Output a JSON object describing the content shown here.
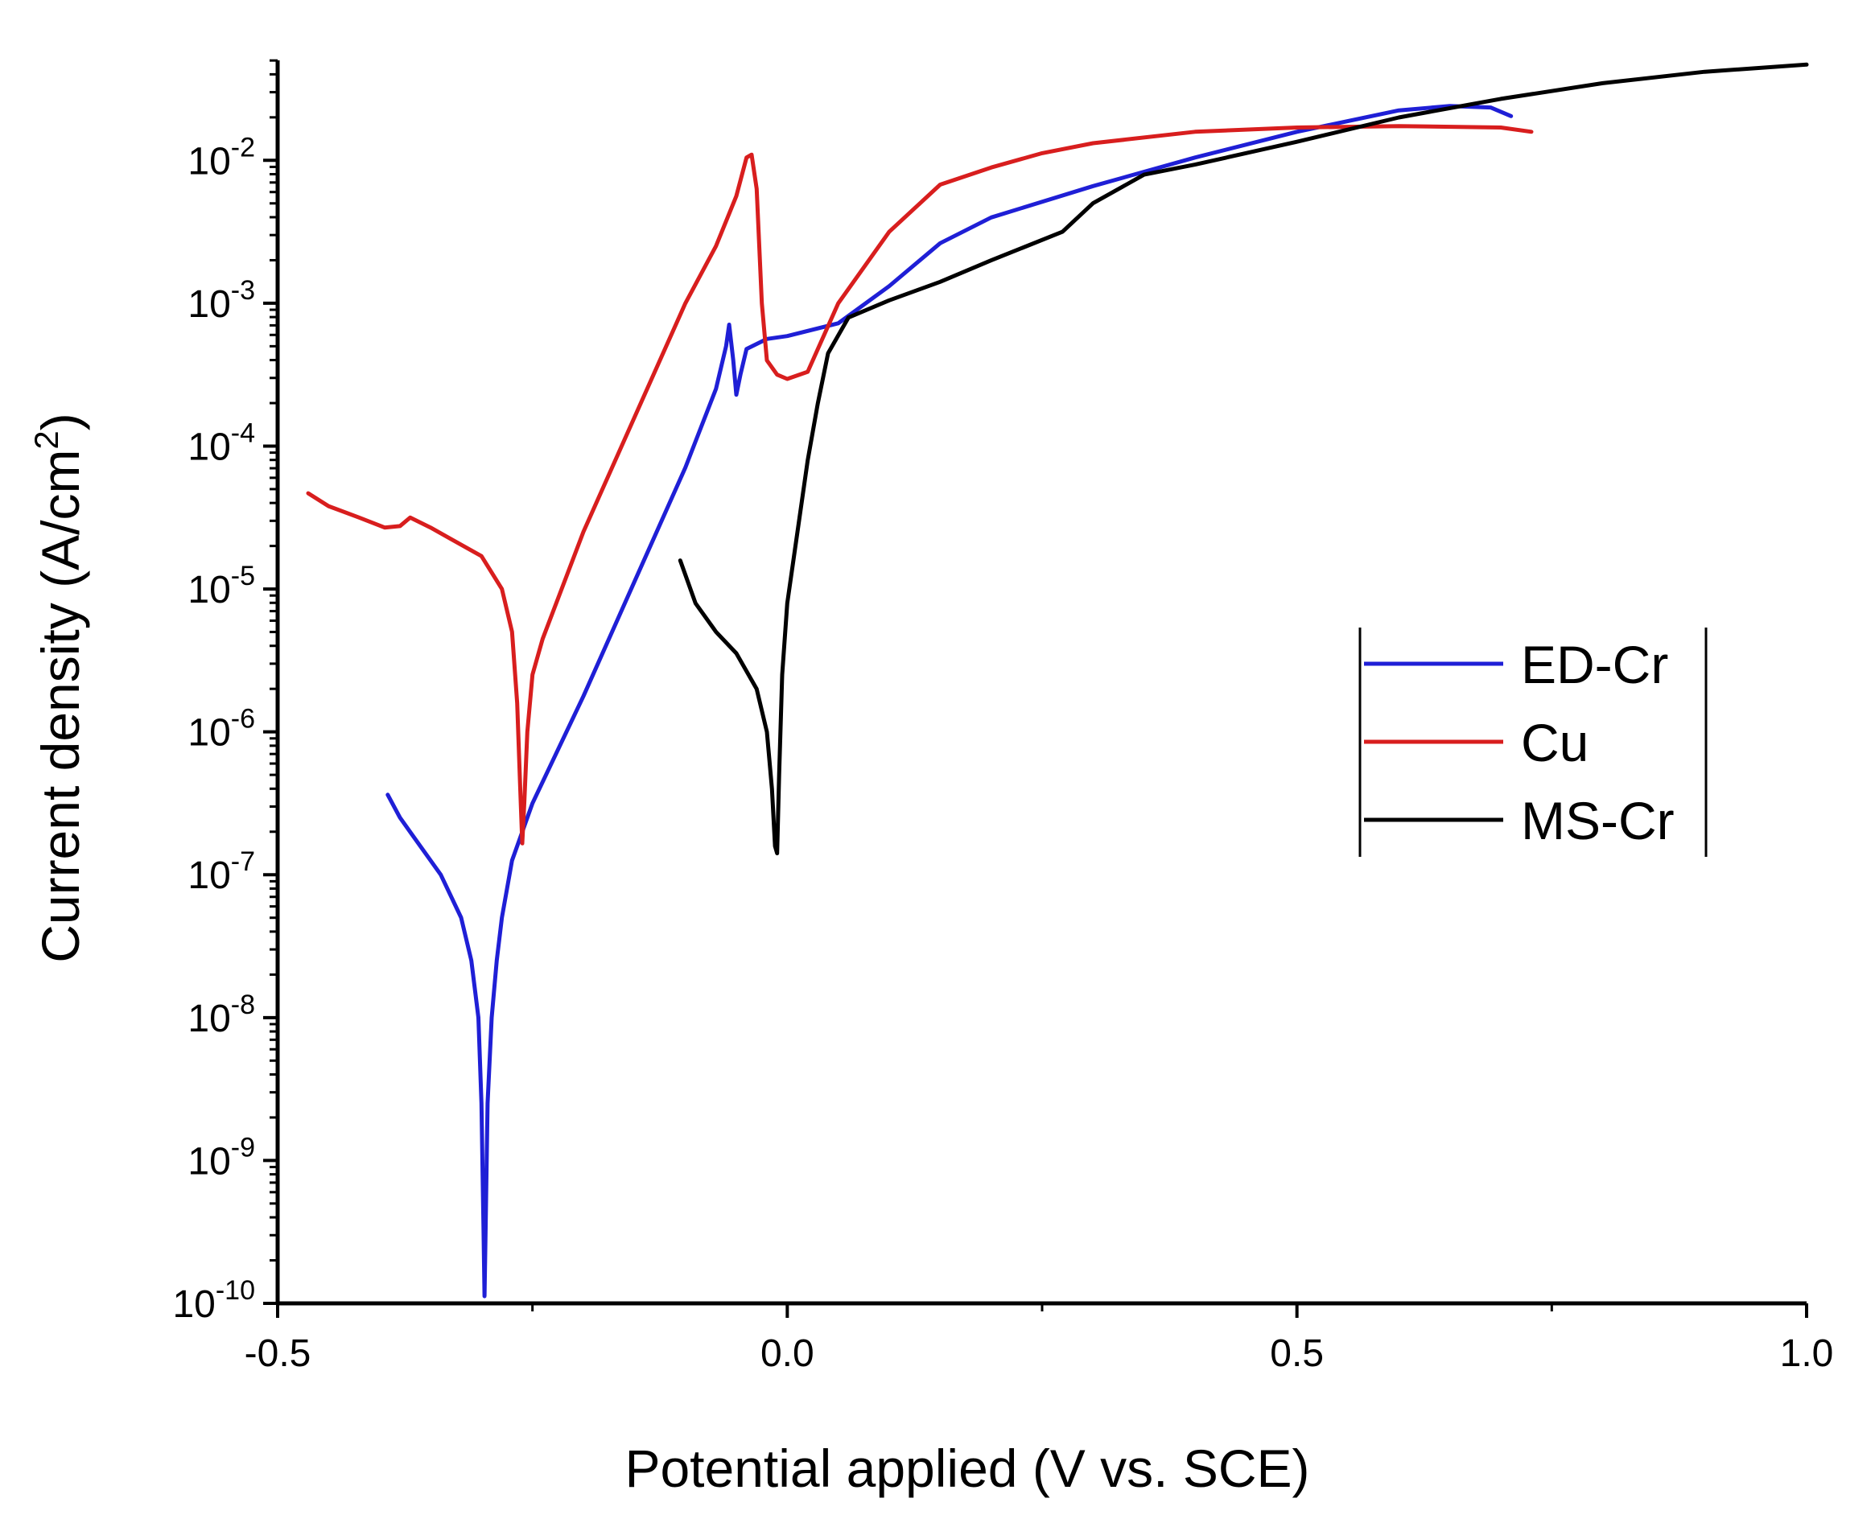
{
  "chart_data": {
    "type": "line",
    "xlabel": "Potential applied (V vs. SCE)",
    "ylabel": "Current density (A/cm",
    "ylabel_sup": "2",
    "ylabel_end": ")",
    "xlim": [
      -0.5,
      1.0
    ],
    "ylim_exp": [
      -10,
      -1.3
    ],
    "y_scale": "log",
    "grid": false,
    "legend_position": "right-middle",
    "x_ticks": [
      {
        "value": -0.5,
        "label": "-0.5"
      },
      {
        "value": 0.0,
        "label": "0.0"
      },
      {
        "value": 0.5,
        "label": "0.5"
      },
      {
        "value": 1.0,
        "label": "1.0"
      }
    ],
    "y_ticks": [
      {
        "exp": -10,
        "base": "10",
        "sup": "-10"
      },
      {
        "exp": -9,
        "base": "10",
        "sup": "-9"
      },
      {
        "exp": -8,
        "base": "10",
        "sup": "-8"
      },
      {
        "exp": -7,
        "base": "10",
        "sup": "-7"
      },
      {
        "exp": -6,
        "base": "10",
        "sup": "-6"
      },
      {
        "exp": -5,
        "base": "10",
        "sup": "-5"
      },
      {
        "exp": -4,
        "base": "10",
        "sup": "-4"
      },
      {
        "exp": -3,
        "base": "10",
        "sup": "-3"
      },
      {
        "exp": -2,
        "base": "10",
        "sup": "-2"
      }
    ],
    "series": [
      {
        "name": "ED-Cr",
        "color": "#1f1fd6",
        "points": [
          [
            -0.392,
            -6.44
          ],
          [
            -0.38,
            -6.6
          ],
          [
            -0.36,
            -6.8
          ],
          [
            -0.34,
            -7.0
          ],
          [
            -0.32,
            -7.3
          ],
          [
            -0.31,
            -7.6
          ],
          [
            -0.303,
            -8.0
          ],
          [
            -0.3,
            -8.6
          ],
          [
            -0.298,
            -9.5
          ],
          [
            -0.297,
            -9.95
          ],
          [
            -0.296,
            -9.5
          ],
          [
            -0.294,
            -8.6
          ],
          [
            -0.29,
            -8.0
          ],
          [
            -0.285,
            -7.6
          ],
          [
            -0.28,
            -7.3
          ],
          [
            -0.27,
            -6.9
          ],
          [
            -0.25,
            -6.5
          ],
          [
            -0.2,
            -5.75
          ],
          [
            -0.15,
            -4.95
          ],
          [
            -0.1,
            -4.15
          ],
          [
            -0.07,
            -3.6
          ],
          [
            -0.06,
            -3.3
          ],
          [
            -0.057,
            -3.15
          ],
          [
            -0.053,
            -3.4
          ],
          [
            -0.05,
            -3.64
          ],
          [
            -0.046,
            -3.5
          ],
          [
            -0.04,
            -3.32
          ],
          [
            -0.02,
            -3.25
          ],
          [
            0.0,
            -3.23
          ],
          [
            0.05,
            -3.14
          ],
          [
            0.1,
            -2.88
          ],
          [
            0.15,
            -2.58
          ],
          [
            0.2,
            -2.4
          ],
          [
            0.3,
            -2.18
          ],
          [
            0.4,
            -1.98
          ],
          [
            0.5,
            -1.8
          ],
          [
            0.6,
            -1.65
          ],
          [
            0.65,
            -1.62
          ],
          [
            0.69,
            -1.63
          ],
          [
            0.71,
            -1.69
          ]
        ]
      },
      {
        "name": "Cu",
        "color": "#d81e1e",
        "points": [
          [
            -0.47,
            -4.33
          ],
          [
            -0.45,
            -4.42
          ],
          [
            -0.42,
            -4.5
          ],
          [
            -0.395,
            -4.57
          ],
          [
            -0.38,
            -4.56
          ],
          [
            -0.37,
            -4.5
          ],
          [
            -0.35,
            -4.57
          ],
          [
            -0.33,
            -4.65
          ],
          [
            -0.3,
            -4.77
          ],
          [
            -0.28,
            -5.0
          ],
          [
            -0.27,
            -5.3
          ],
          [
            -0.265,
            -5.8
          ],
          [
            -0.262,
            -6.4
          ],
          [
            -0.26,
            -6.78
          ],
          [
            -0.258,
            -6.5
          ],
          [
            -0.255,
            -6.0
          ],
          [
            -0.25,
            -5.6
          ],
          [
            -0.24,
            -5.35
          ],
          [
            -0.2,
            -4.6
          ],
          [
            -0.15,
            -3.8
          ],
          [
            -0.1,
            -3.0
          ],
          [
            -0.07,
            -2.6
          ],
          [
            -0.05,
            -2.25
          ],
          [
            -0.04,
            -1.98
          ],
          [
            -0.035,
            -1.96
          ],
          [
            -0.03,
            -2.2
          ],
          [
            -0.025,
            -3.0
          ],
          [
            -0.02,
            -3.4
          ],
          [
            -0.01,
            -3.5
          ],
          [
            0.0,
            -3.53
          ],
          [
            0.02,
            -3.48
          ],
          [
            0.05,
            -3.0
          ],
          [
            0.1,
            -2.5
          ],
          [
            0.15,
            -2.17
          ],
          [
            0.2,
            -2.05
          ],
          [
            0.25,
            -1.95
          ],
          [
            0.3,
            -1.88
          ],
          [
            0.4,
            -1.8
          ],
          [
            0.5,
            -1.77
          ],
          [
            0.6,
            -1.76
          ],
          [
            0.7,
            -1.77
          ],
          [
            0.73,
            -1.8
          ]
        ]
      },
      {
        "name": "MS-Cr",
        "color": "#000000",
        "points": [
          [
            -0.105,
            -4.8
          ],
          [
            -0.09,
            -5.1
          ],
          [
            -0.07,
            -5.3
          ],
          [
            -0.05,
            -5.45
          ],
          [
            -0.03,
            -5.7
          ],
          [
            -0.02,
            -6.0
          ],
          [
            -0.015,
            -6.4
          ],
          [
            -0.012,
            -6.8
          ],
          [
            -0.01,
            -6.85
          ],
          [
            -0.008,
            -6.3
          ],
          [
            -0.005,
            -5.6
          ],
          [
            0.0,
            -5.1
          ],
          [
            0.01,
            -4.6
          ],
          [
            0.02,
            -4.1
          ],
          [
            0.03,
            -3.7
          ],
          [
            0.04,
            -3.35
          ],
          [
            0.06,
            -3.1
          ],
          [
            0.1,
            -2.98
          ],
          [
            0.15,
            -2.85
          ],
          [
            0.2,
            -2.7
          ],
          [
            0.27,
            -2.5
          ],
          [
            0.3,
            -2.3
          ],
          [
            0.35,
            -2.1
          ],
          [
            0.4,
            -2.03
          ],
          [
            0.5,
            -1.87
          ],
          [
            0.6,
            -1.7
          ],
          [
            0.7,
            -1.57
          ],
          [
            0.8,
            -1.46
          ],
          [
            0.9,
            -1.38
          ],
          [
            1.0,
            -1.33
          ]
        ]
      }
    ]
  }
}
